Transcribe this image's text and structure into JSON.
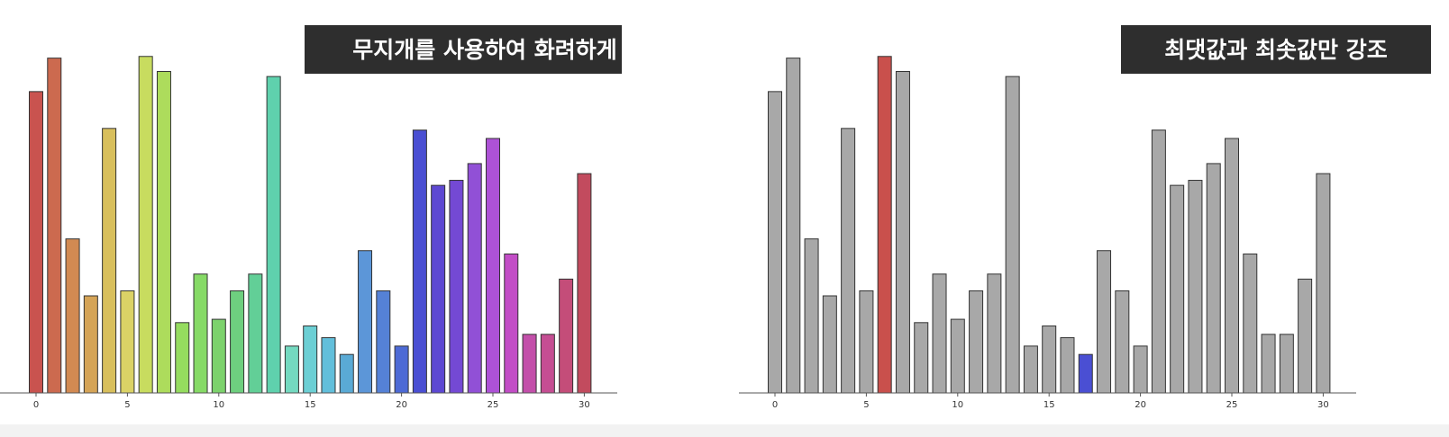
{
  "chart_data": [
    {
      "type": "bar",
      "title": "무지개를 사용하여 화려하게",
      "x": [
        0,
        1,
        2,
        3,
        4,
        5,
        6,
        7,
        8,
        9,
        10,
        11,
        12,
        13,
        14,
        15,
        16,
        17,
        18,
        19,
        20,
        21,
        22,
        23,
        24,
        25,
        26,
        27,
        28,
        29,
        30
      ],
      "values": [
        90,
        100,
        46,
        29,
        79,
        30.5,
        100.5,
        96,
        21,
        35.5,
        22,
        30.5,
        35.5,
        94.5,
        14,
        20,
        16.5,
        11.5,
        42.5,
        30.5,
        14,
        78.5,
        62,
        63.5,
        68.5,
        76,
        41.5,
        17.5,
        17.5,
        34,
        65.5
      ],
      "xticks": [
        0,
        5,
        10,
        15,
        20,
        25,
        30
      ],
      "ylim": [
        0,
        105
      ],
      "coloring": "rainbow",
      "colors": [
        "#c9534f",
        "#cc6a4f",
        "#d28a52",
        "#d5a457",
        "#d8bf5c",
        "#dbd266",
        "#c8dc5f",
        "#addc5c",
        "#95dc5f",
        "#86da66",
        "#7cd26c",
        "#6ecf7f",
        "#62cf97",
        "#5fd1ad",
        "#74d9c0",
        "#6ccfd4",
        "#62bfdb",
        "#5aaad5",
        "#5c96d8",
        "#5581d6",
        "#4d6ad5",
        "#4a4fd3",
        "#5d48d2",
        "#7449d4",
        "#9150d6",
        "#ad52d6",
        "#c24dc6",
        "#c34faa",
        "#c54e93",
        "#c44d79",
        "#c24b5e"
      ]
    },
    {
      "type": "bar",
      "title": "최댓값과 최솟값만 강조",
      "x": [
        0,
        1,
        2,
        3,
        4,
        5,
        6,
        7,
        8,
        9,
        10,
        11,
        12,
        13,
        14,
        15,
        16,
        17,
        18,
        19,
        20,
        21,
        22,
        23,
        24,
        25,
        26,
        27,
        28,
        29,
        30
      ],
      "values": [
        90,
        100,
        46,
        29,
        79,
        30.5,
        100.5,
        96,
        21,
        35.5,
        22,
        30.5,
        35.5,
        94.5,
        14,
        20,
        16.5,
        11.5,
        42.5,
        30.5,
        14,
        78.5,
        62,
        63.5,
        68.5,
        76,
        41.5,
        17.5,
        17.5,
        34,
        65.5
      ],
      "xticks": [
        0,
        5,
        10,
        15,
        20,
        25,
        30
      ],
      "ylim": [
        0,
        105
      ],
      "coloring": "highlight-extremes",
      "base_color": "#a8a8a8",
      "max_color": "#c9504c",
      "min_color": "#4a4fd3"
    }
  ]
}
